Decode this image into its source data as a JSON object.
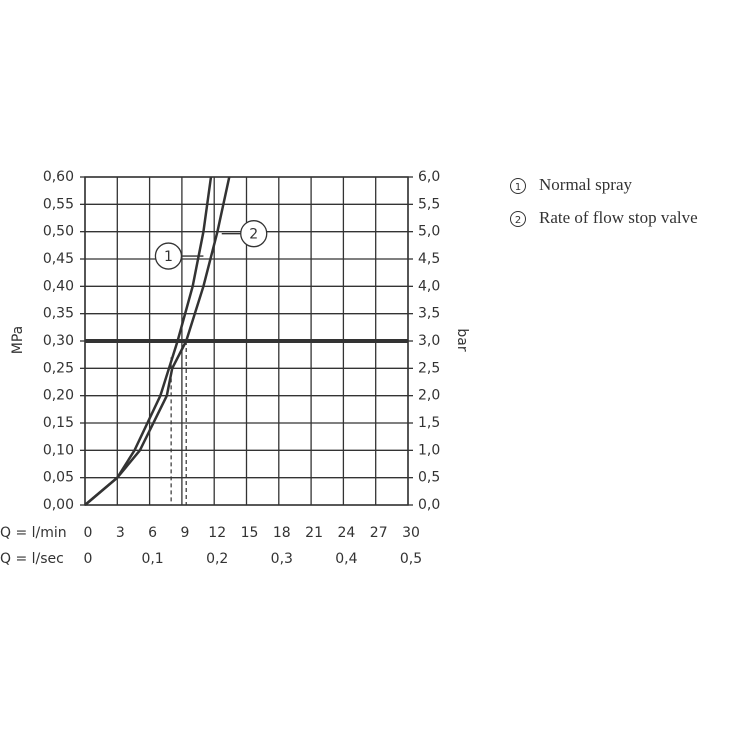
{
  "chart_data": {
    "type": "line",
    "x_label": "Q = l/min",
    "x2_label": "Q = l/sec",
    "y_label": "MPa",
    "y2_label": "bar",
    "xlim": [
      0,
      30
    ],
    "xticks": [
      0,
      3,
      6,
      9,
      12,
      15,
      18,
      21,
      24,
      27,
      30
    ],
    "x2lim": [
      0,
      0.5
    ],
    "x2ticks": [
      0,
      {
        "value": 0.1,
        "label": "0,1"
      },
      {
        "value": 0.2,
        "label": "0,2"
      },
      {
        "value": 0.3,
        "label": "0,3"
      },
      {
        "value": 0.4,
        "label": "0,4"
      },
      {
        "value": 0.5,
        "label": "0,5"
      }
    ],
    "ylim": [
      0,
      0.6
    ],
    "yticks": [
      {
        "value": 0,
        "label": "0,00"
      },
      {
        "value": 0.05,
        "label": "0,05"
      },
      {
        "value": 0.1,
        "label": "0,10"
      },
      {
        "value": 0.15,
        "label": "0,15"
      },
      {
        "value": 0.2,
        "label": "0,20"
      },
      {
        "value": 0.25,
        "label": "0,25"
      },
      {
        "value": 0.3,
        "label": "0,30"
      },
      {
        "value": 0.35,
        "label": "0,35"
      },
      {
        "value": 0.4,
        "label": "0,40"
      },
      {
        "value": 0.45,
        "label": "0,45"
      },
      {
        "value": 0.5,
        "label": "0,50"
      },
      {
        "value": 0.55,
        "label": "0,55"
      },
      {
        "value": 0.6,
        "label": "0,60"
      }
    ],
    "y2lim": [
      0,
      6
    ],
    "y2ticks": [
      {
        "value": 0,
        "label": "0,0"
      },
      {
        "value": 0.5,
        "label": "0,5"
      },
      {
        "value": 1,
        "label": "1,0"
      },
      {
        "value": 1.5,
        "label": "1,5"
      },
      {
        "value": 2,
        "label": "2,0"
      },
      {
        "value": 2.5,
        "label": "2,5"
      },
      {
        "value": 3,
        "label": "3,0"
      },
      {
        "value": 3.5,
        "label": "3,5"
      },
      {
        "value": 4,
        "label": "4,0"
      },
      {
        "value": 4.5,
        "label": "4,5"
      },
      {
        "value": 5,
        "label": "5,0"
      },
      {
        "value": 5.5,
        "label": "5,5"
      },
      {
        "value": 6,
        "label": "6,0"
      }
    ],
    "grid": true,
    "reference_line": 0.3,
    "drop_lines": [
      {
        "x": 8,
        "y": 0.27
      },
      {
        "x": 9.4,
        "y": 0.3
      }
    ],
    "series": [
      {
        "name": "Normal spray",
        "marker": "1",
        "color": "#333333",
        "callout": {
          "x": 11,
          "y": 0.47
        },
        "x": [
          0,
          3,
          4.6,
          7,
          8.6,
          10,
          11,
          11.7
        ],
        "values": [
          0,
          0.05,
          0.1,
          0.2,
          0.3,
          0.4,
          0.5,
          0.6
        ]
      },
      {
        "name": "Rate of flow stop valve",
        "marker": "2",
        "color": "#333333",
        "callout": {
          "x": 12.7,
          "y": 0.5
        },
        "x": [
          0,
          3,
          5.1,
          7.6,
          8.1,
          9.4,
          11,
          12.3,
          13.4
        ],
        "values": [
          0,
          0.05,
          0.1,
          0.2,
          0.25,
          0.3,
          0.4,
          0.5,
          0.6
        ]
      }
    ]
  }
}
